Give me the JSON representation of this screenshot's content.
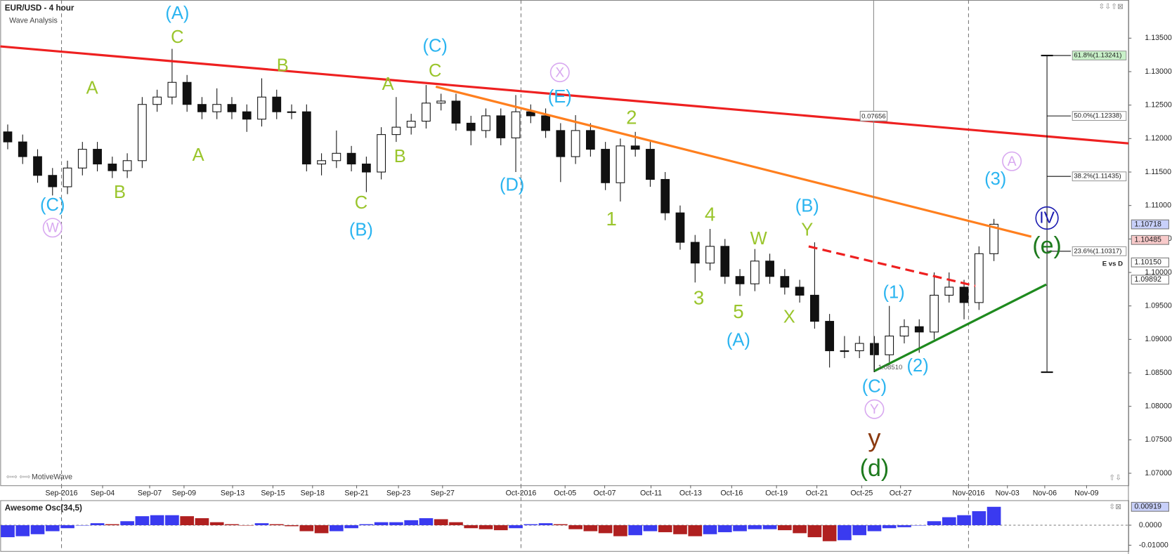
{
  "chart_data": {
    "type": "candlestick",
    "title": "EUR/USD - 4 hour",
    "subtitle": "Wave Analysis",
    "footer": "MotiveWave",
    "xlim": [
      0,
      151
    ],
    "ylim": [
      1.0682,
      1.1407
    ],
    "xticks": [
      {
        "value": 8.2,
        "label": "Sep-2016"
      },
      {
        "value": 13.7,
        "label": "Sep-04"
      },
      {
        "value": 20,
        "label": "Sep-07"
      },
      {
        "value": 24.6,
        "label": "Sep-09"
      },
      {
        "value": 31.1,
        "label": "Sep-13"
      },
      {
        "value": 36.5,
        "label": "Sep-15"
      },
      {
        "value": 41.8,
        "label": "Sep-18"
      },
      {
        "value": 47.7,
        "label": "Sep-21"
      },
      {
        "value": 53.3,
        "label": "Sep-23"
      },
      {
        "value": 59.2,
        "label": "Sep-27"
      },
      {
        "value": 69.7,
        "label": "Oct-2016"
      },
      {
        "value": 75.6,
        "label": "Oct-05"
      },
      {
        "value": 80.9,
        "label": "Oct-07"
      },
      {
        "value": 87.1,
        "label": "Oct-11"
      },
      {
        "value": 92.4,
        "label": "Oct-13"
      },
      {
        "value": 97.9,
        "label": "Oct-16"
      },
      {
        "value": 103.9,
        "label": "Oct-19"
      },
      {
        "value": 109.3,
        "label": "Oct-21"
      },
      {
        "value": 115.3,
        "label": "Oct-25"
      },
      {
        "value": 120.5,
        "label": "Oct-27"
      },
      {
        "value": 129.6,
        "label": "Nov-2016"
      },
      {
        "value": 134.8,
        "label": "Nov-03"
      },
      {
        "value": 139.8,
        "label": "Nov-06"
      },
      {
        "value": 145.4,
        "label": "Nov-09"
      }
    ],
    "separators": [
      8.2,
      69.7,
      129.6
    ],
    "yticks": [
      {
        "value": 1.07,
        "label": "1.07000"
      },
      {
        "value": 1.075,
        "label": "1.07500"
      },
      {
        "value": 1.08,
        "label": "1.08000"
      },
      {
        "value": 1.085,
        "label": "1.08500"
      },
      {
        "value": 1.09,
        "label": "1.09000"
      },
      {
        "value": 1.095,
        "label": "1.09500"
      },
      {
        "value": 1.1,
        "label": "1.10000"
      },
      {
        "value": 1.105,
        "label": "1.10500"
      },
      {
        "value": 1.11,
        "label": "1.11000"
      },
      {
        "value": 1.115,
        "label": "1.11500"
      },
      {
        "value": 1.12,
        "label": "1.12000"
      },
      {
        "value": 1.125,
        "label": "1.12500"
      },
      {
        "value": 1.13,
        "label": "1.13000"
      },
      {
        "value": 1.135,
        "label": "1.13500"
      }
    ],
    "price_tags": [
      {
        "value": 1.10718,
        "label": "1.10718",
        "color": "#c8d0fa"
      },
      {
        "value": 1.10485,
        "label": "1.10485",
        "color": "#f8caca"
      },
      {
        "value": 1.1015,
        "label": "1.10150",
        "color": "#ffffff"
      },
      {
        "value": 1.09892,
        "label": "1.09892",
        "color": "#ffffff"
      }
    ],
    "x": [
      1,
      3,
      5,
      7,
      9,
      11,
      13,
      15,
      17,
      19,
      21,
      23,
      25,
      27,
      29,
      31,
      33,
      35,
      37,
      39,
      41,
      43,
      45,
      47,
      49,
      51,
      53,
      55,
      57,
      59,
      61,
      63,
      65,
      67,
      69,
      71,
      73,
      75,
      77,
      79,
      81,
      83,
      85,
      87,
      89,
      91,
      93,
      95,
      97,
      99,
      101,
      103,
      105,
      107,
      109,
      111,
      113,
      115,
      117,
      119,
      121,
      123,
      125,
      127,
      129,
      131,
      133
    ],
    "open": [
      1.121,
      1.1195,
      1.1173,
      1.1145,
      1.1128,
      1.1156,
      1.1184,
      1.1162,
      1.1152,
      1.1167,
      1.1251,
      1.1262,
      1.1284,
      1.1251,
      1.124,
      1.1251,
      1.124,
      1.1229,
      1.1262,
      1.124,
      1.124,
      1.1162,
      1.1167,
      1.1178,
      1.1162,
      1.115,
      1.1206,
      1.1217,
      1.1226,
      1.1253,
      1.1256,
      1.1223,
      1.1212,
      1.1234,
      1.1201,
      1.124,
      1.1234,
      1.1212,
      1.1173,
      1.1212,
      1.1184,
      1.1134,
      1.1189,
      1.1184,
      1.1139,
      1.1089,
      1.1045,
      1.1014,
      1.1039,
      1.0994,
      1.0983,
      1.1017,
      1.0994,
      1.0978,
      1.0966,
      1.0927,
      1.0883,
      1.0883,
      1.0894,
      1.0877,
      1.0905,
      1.0919,
      1.0911,
      1.0966,
      1.0978,
      1.0955,
      1.1028
    ],
    "high": [
      1.1221,
      1.1206,
      1.1184,
      1.1156,
      1.1167,
      1.1195,
      1.1195,
      1.1173,
      1.1178,
      1.1262,
      1.1273,
      1.1334,
      1.1295,
      1.1262,
      1.1275,
      1.1262,
      1.1251,
      1.129,
      1.1273,
      1.1251,
      1.1251,
      1.1178,
      1.1212,
      1.1189,
      1.1173,
      1.1217,
      1.1262,
      1.1237,
      1.128,
      1.1267,
      1.1267,
      1.1234,
      1.1245,
      1.1245,
      1.1265,
      1.1251,
      1.1245,
      1.1223,
      1.1235,
      1.1223,
      1.1195,
      1.12,
      1.121,
      1.1195,
      1.115,
      1.11,
      1.1056,
      1.1065,
      1.105,
      1.1005,
      1.1035,
      1.1028,
      1.1005,
      1.0989,
      1.1045,
      1.0938,
      1.0905,
      1.0905,
      1.0905,
      1.095,
      1.093,
      1.093,
      1.1,
      1.1,
      1.0989,
      1.1039,
      1.108
    ],
    "low": [
      1.1184,
      1.1162,
      1.1134,
      1.1115,
      1.1117,
      1.1145,
      1.1151,
      1.1141,
      1.1141,
      1.1156,
      1.124,
      1.1251,
      1.124,
      1.1229,
      1.1229,
      1.1229,
      1.121,
      1.1218,
      1.1229,
      1.1229,
      1.1151,
      1.1145,
      1.1156,
      1.1151,
      1.112,
      1.1139,
      1.1195,
      1.1206,
      1.1215,
      1.1242,
      1.1212,
      1.119,
      1.1201,
      1.119,
      1.115,
      1.1223,
      1.1201,
      1.1135,
      1.1162,
      1.1173,
      1.1123,
      1.1106,
      1.1173,
      1.1128,
      1.1078,
      1.1034,
      1.0985,
      1.1003,
      1.0983,
      1.0965,
      1.0972,
      1.0983,
      1.0967,
      1.0955,
      1.0916,
      1.0858,
      1.0872,
      1.0872,
      1.0851,
      1.0866,
      1.0894,
      1.088,
      1.09,
      1.0955,
      1.093,
      1.0944,
      1.1017
    ],
    "close": [
      1.1195,
      1.1173,
      1.1145,
      1.1128,
      1.1156,
      1.1184,
      1.1162,
      1.1152,
      1.1167,
      1.1251,
      1.1262,
      1.1284,
      1.1251,
      1.124,
      1.1251,
      1.124,
      1.1229,
      1.1262,
      1.124,
      1.124,
      1.1162,
      1.1167,
      1.1178,
      1.1162,
      1.115,
      1.1206,
      1.1217,
      1.1226,
      1.1253,
      1.1256,
      1.1223,
      1.1212,
      1.1234,
      1.1201,
      1.124,
      1.1234,
      1.1212,
      1.1173,
      1.1212,
      1.1184,
      1.1134,
      1.1189,
      1.1184,
      1.1139,
      1.1089,
      1.1045,
      1.1014,
      1.1039,
      1.0994,
      1.0983,
      1.1017,
      1.0994,
      1.0978,
      1.0966,
      1.0927,
      1.0883,
      1.0883,
      1.0894,
      1.0877,
      1.0905,
      1.0919,
      1.0911,
      1.0966,
      1.0978,
      1.0955,
      1.1028,
      1.1072
    ],
    "trendlines": [
      {
        "x": [
          0,
          151
        ],
        "y": [
          1.13377,
          1.11928
        ],
        "color": "#ee2020",
        "dashed": false
      },
      {
        "x": [
          58.3,
          138
        ],
        "y": [
          1.12775,
          1.10534
        ],
        "color": "#ff7f1e",
        "dashed": false
      },
      {
        "x": [
          117,
          140
        ],
        "y": [
          1.08527,
          1.0982
        ],
        "color": "#1e8a1e",
        "dashed": false
      },
      {
        "x": [
          108.2,
          130.5
        ],
        "y": [
          1.10389,
          1.09798
        ],
        "color": "#ee2020",
        "dashed": true
      }
    ],
    "fib": {
      "x": 140.1,
      "range": [
        1.0851,
        1.13241
      ],
      "name": "E vs D",
      "levels": [
        {
          "value": 1.13241,
          "label": "61.8%(1.13241)",
          "color": "#c8f0c8"
        },
        {
          "value": 1.12338,
          "label": "50.0%(1.12338)",
          "color": "#ffffff"
        },
        {
          "value": 1.11435,
          "label": "38.2%(1.11435)",
          "color": "#ffffff"
        },
        {
          "value": 1.10317,
          "label": "23.6%(1.10317)",
          "color": "#ffffff"
        }
      ]
    },
    "measure": {
      "x": 116.9,
      "value": 0.07656,
      "low": {
        "value": 1.0851,
        "label": "1.08510"
      }
    },
    "wave_labels": [
      {
        "text": "(A)",
        "color": "#2ab4f0"
      },
      {
        "text": "C",
        "color": "#9ac52c"
      },
      {
        "text": "(C)",
        "color": "#2ab4f0"
      },
      {
        "text": "W",
        "color": "#d8a8f0",
        "circled": true
      },
      {
        "text": "A",
        "color": "#9ac52c"
      },
      {
        "text": "B",
        "color": "#9ac52c"
      },
      {
        "text": "B",
        "color": "#9ac52c"
      },
      {
        "text": "A",
        "color": "#9ac52c"
      },
      {
        "text": "C",
        "color": "#9ac52c"
      },
      {
        "text": "(B)",
        "color": "#2ab4f0"
      },
      {
        "text": "A",
        "color": "#9ac52c"
      },
      {
        "text": "B",
        "color": "#9ac52c"
      },
      {
        "text": "(C)",
        "color": "#2ab4f0"
      },
      {
        "text": "C",
        "color": "#9ac52c"
      },
      {
        "text": "X",
        "color": "#d8a8f0",
        "circled": true
      },
      {
        "text": "(E)",
        "color": "#2ab4f0"
      },
      {
        "text": "(D)",
        "color": "#2ab4f0"
      },
      {
        "text": "2",
        "color": "#9ac52c"
      },
      {
        "text": "1",
        "color": "#9ac52c"
      },
      {
        "text": "4",
        "color": "#9ac52c"
      },
      {
        "text": "3",
        "color": "#9ac52c"
      },
      {
        "text": "W",
        "color": "#9ac52c"
      },
      {
        "text": "5",
        "color": "#9ac52c"
      },
      {
        "text": "(A)",
        "color": "#2ab4f0"
      },
      {
        "text": "X",
        "color": "#9ac52c"
      },
      {
        "text": "(B)",
        "color": "#2ab4f0"
      },
      {
        "text": "Y",
        "color": "#9ac52c"
      },
      {
        "text": "(1)",
        "color": "#2ab4f0"
      },
      {
        "text": "(2)",
        "color": "#2ab4f0"
      },
      {
        "text": "(C)",
        "color": "#2ab4f0"
      },
      {
        "text": "Y",
        "color": "#d8a8f0",
        "circled": true
      },
      {
        "text": "y",
        "color": "#8b3a10"
      },
      {
        "text": "(d)",
        "color": "#1e7a1e"
      },
      {
        "text": "(3)",
        "color": "#2ab4f0"
      },
      {
        "text": "A",
        "color": "#d8a8f0",
        "circled": true
      },
      {
        "text": "IV",
        "color": "#1a1ab0",
        "circled": true
      },
      {
        "text": "(e)",
        "color": "#1e7a1e"
      }
    ],
    "oscillator": {
      "title": "Awesome Osc(34,5)",
      "ylim": [
        -0.0129,
        0.0121
      ],
      "yticks": [
        {
          "value": 0,
          "label": "0.0000"
        },
        {
          "value": -0.01,
          "label": "-0.01000"
        }
      ],
      "last_tag": {
        "value": 0.00919,
        "label": "0.00919"
      },
      "up_color": "#3a3af0",
      "down_color": "#b02020",
      "values": [
        -0.006,
        -0.0055,
        -0.0045,
        -0.003,
        -0.0015,
        0,
        0.001,
        0.0005,
        0.002,
        0.0045,
        0.005,
        0.005,
        0.0045,
        0.0035,
        0.0015,
        0.0005,
        0,
        0.001,
        0.0005,
        -0.0005,
        -0.003,
        -0.004,
        -0.003,
        -0.0015,
        0.0005,
        0.0015,
        0.0015,
        0.0025,
        0.0035,
        0.003,
        0.0015,
        -0.0015,
        -0.002,
        -0.0025,
        -0.0015,
        0.0005,
        0.001,
        0.0005,
        -0.002,
        -0.003,
        -0.004,
        -0.0055,
        -0.005,
        -0.003,
        -0.0035,
        -0.0045,
        -0.0055,
        -0.0045,
        -0.0035,
        -0.003,
        -0.002,
        -0.002,
        -0.0025,
        -0.004,
        -0.006,
        -0.008,
        -0.0075,
        -0.005,
        -0.003,
        -0.0015,
        -0.001,
        0,
        0.002,
        0.004,
        0.005,
        0.007,
        0.00919
      ]
    }
  }
}
